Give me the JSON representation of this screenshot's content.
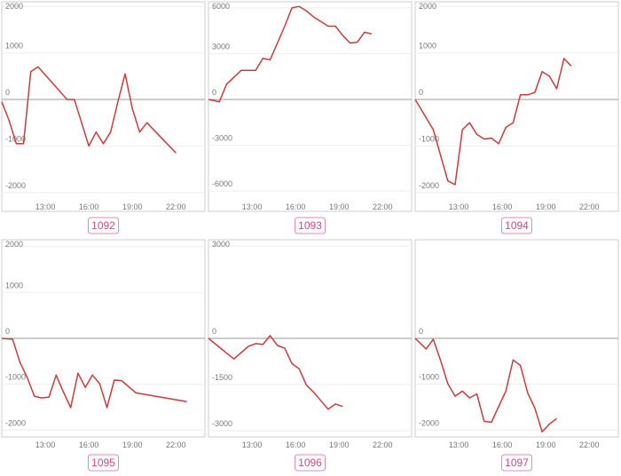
{
  "chart_data": [
    {
      "type": "line",
      "title": "1092",
      "color": "#cc3b3b",
      "x": [
        10,
        10.5,
        11,
        11.5,
        12,
        12.5,
        14.5,
        15,
        15.5,
        16,
        16.5,
        17,
        17.5,
        18,
        18.5,
        19,
        19.5,
        20,
        22
      ],
      "values": [
        -50,
        -450,
        -950,
        -950,
        600,
        700,
        0,
        0,
        -500,
        -1000,
        -700,
        -950,
        -700,
        -50,
        550,
        -200,
        -700,
        -500,
        -1150
      ],
      "xlim": [
        10,
        24
      ],
      "xticks": [
        {
          "value": 13,
          "label": "13:00"
        },
        {
          "value": 16,
          "label": "16:00"
        },
        {
          "value": 19,
          "label": "19:00"
        },
        {
          "value": 22,
          "label": "22:00"
        }
      ],
      "ylim": [
        -2100,
        2100
      ],
      "yticks": [
        2000,
        1000,
        0,
        -1000,
        -2000
      ]
    },
    {
      "type": "line",
      "title": "1093",
      "color": "#cc3b3b",
      "x": [
        10,
        10.75,
        11.25,
        12.25,
        13.25,
        13.75,
        14.25,
        14.75,
        15.25,
        15.75,
        16.25,
        16.75,
        17.25,
        17.75,
        18.25,
        18.75,
        19.25,
        19.75,
        20.25,
        20.75,
        21.25
      ],
      "values": [
        0,
        -150,
        1000,
        1900,
        1900,
        2700,
        2600,
        3700,
        4800,
        6000,
        6100,
        5800,
        5400,
        5100,
        4800,
        4800,
        4200,
        3700,
        3750,
        4400,
        4300
      ],
      "xlim": [
        10,
        24
      ],
      "xticks": [
        {
          "value": 13,
          "label": "13:00"
        },
        {
          "value": 16,
          "label": "16:00"
        },
        {
          "value": 19,
          "label": "19:00"
        },
        {
          "value": 22,
          "label": "22:00"
        }
      ],
      "ylim": [
        -6400,
        6400
      ],
      "yticks": [
        6000,
        3000,
        0,
        -3000,
        -6000
      ]
    },
    {
      "type": "line",
      "title": "1094",
      "color": "#cc3b3b",
      "x": [
        10,
        11.25,
        12.25,
        12.75,
        13.25,
        13.75,
        14.25,
        14.75,
        15.25,
        15.75,
        16.25,
        16.75,
        17.25,
        17.75,
        18.25,
        18.75,
        19.25,
        19.75,
        20.25,
        20.75
      ],
      "values": [
        0,
        -650,
        -1750,
        -1830,
        -650,
        -500,
        -750,
        -850,
        -830,
        -950,
        -600,
        -500,
        100,
        100,
        150,
        600,
        500,
        230,
        880,
        720
      ],
      "xlim": [
        10,
        24
      ],
      "xticks": [
        {
          "value": 13,
          "label": "13:00"
        },
        {
          "value": 16,
          "label": "16:00"
        },
        {
          "value": 19,
          "label": "19:00"
        },
        {
          "value": 22,
          "label": "22:00"
        }
      ],
      "ylim": [
        -2100,
        2100
      ],
      "yticks": [
        2000,
        1000,
        0,
        -1000,
        -2000
      ]
    },
    {
      "type": "line",
      "title": "1095",
      "color": "#cc3b3b",
      "x": [
        10,
        10.75,
        11.25,
        11.75,
        12.25,
        12.75,
        13.25,
        13.75,
        14.25,
        14.75,
        15.25,
        15.75,
        16.25,
        16.75,
        17.25,
        17.75,
        18.25,
        19.25,
        22.75
      ],
      "values": [
        0,
        -20,
        -520,
        -850,
        -1260,
        -1300,
        -1280,
        -800,
        -1170,
        -1510,
        -760,
        -1070,
        -800,
        -990,
        -1510,
        -910,
        -920,
        -1190,
        -1380
      ],
      "xlim": [
        10,
        24
      ],
      "xticks": [
        {
          "value": 13,
          "label": "13:00"
        },
        {
          "value": 16,
          "label": "16:00"
        },
        {
          "value": 19,
          "label": "19:00"
        },
        {
          "value": 22,
          "label": "22:00"
        }
      ],
      "ylim": [
        -2150,
        2150
      ],
      "yticks": [
        2000,
        1000,
        0,
        -1000,
        -2000
      ]
    },
    {
      "type": "line",
      "title": "1096",
      "color": "#cc3b3b",
      "x": [
        10,
        11.75,
        12.75,
        13.25,
        13.75,
        14.25,
        14.75,
        15.25,
        15.75,
        16.25,
        16.75,
        17.25,
        18.25,
        18.75,
        19.25
      ],
      "values": [
        0,
        -670,
        -260,
        -170,
        -200,
        90,
        -230,
        -320,
        -820,
        -990,
        -1520,
        -1750,
        -2300,
        -2130,
        -2210
      ],
      "xlim": [
        10,
        24
      ],
      "xticks": [
        {
          "value": 13,
          "label": "13:00"
        },
        {
          "value": 16,
          "label": "16:00"
        },
        {
          "value": 19,
          "label": "19:00"
        },
        {
          "value": 22,
          "label": "22:00"
        }
      ],
      "ylim": [
        -3200,
        3200
      ],
      "yticks": [
        3000,
        0,
        -1500,
        -3000
      ]
    },
    {
      "type": "line",
      "title": "1097",
      "color": "#cc3b3b",
      "x": [
        10,
        10.75,
        11.25,
        11.75,
        12.25,
        12.75,
        13.25,
        13.75,
        14.25,
        14.75,
        15.25,
        16.25,
        16.75,
        17.25,
        17.75,
        18.25,
        18.75,
        19.25,
        19.75
      ],
      "values": [
        0,
        -230,
        -20,
        -480,
        -990,
        -1260,
        -1150,
        -1300,
        -1210,
        -1810,
        -1830,
        -1150,
        -470,
        -590,
        -1190,
        -1520,
        -2040,
        -1870,
        -1750
      ],
      "xlim": [
        10,
        24
      ],
      "xticks": [
        {
          "value": 13,
          "label": "13:00"
        },
        {
          "value": 16,
          "label": "16:00"
        },
        {
          "value": 19,
          "label": "19:00"
        },
        {
          "value": 22,
          "label": "22:00"
        }
      ],
      "ylim": [
        -2150,
        2150
      ],
      "yticks": [
        0,
        -1000,
        -2000
      ]
    }
  ]
}
